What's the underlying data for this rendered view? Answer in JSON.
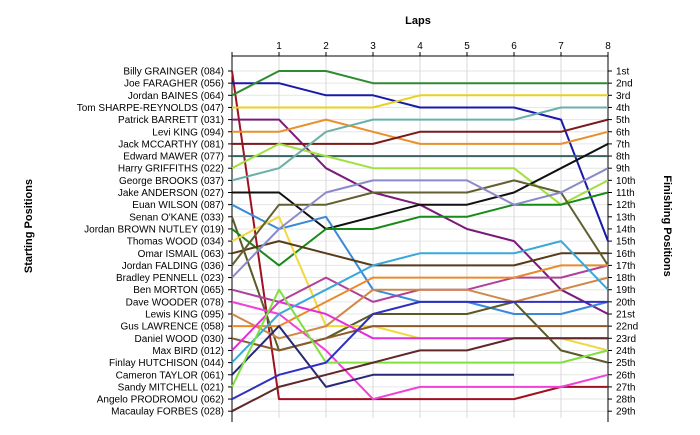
{
  "chart_data": {
    "type": "line",
    "title": "Laps",
    "ylabel_left": "Starting Positions",
    "ylabel_right": "Finishing Positions",
    "x": [
      0,
      1,
      2,
      3,
      4,
      5,
      6,
      7,
      8
    ],
    "x_tick_labels": [
      "1",
      "2",
      "3",
      "4",
      "5",
      "6",
      "7",
      "8"
    ],
    "y_reversed": true,
    "y_range": [
      1,
      29
    ],
    "grid": true,
    "legend": "none",
    "starting_labels": [
      "Billy GRAINGER (084)",
      "Joe FARAGHER (056)",
      "Jordan BAINES (064)",
      "Tom SHARPE-REYNOLDS (047)",
      "Patrick BARRETT (031)",
      "Levi KING (094)",
      "Jack MCCARTHY (081)",
      "Edward MAWER (077)",
      "Harry GRIFFITHS (022)",
      "George BROOKS (037)",
      "Jake ANDERSON (027)",
      "Euan WILSON (087)",
      "Senan O'KANE (033)",
      "Jordan BROWN NUTLEY (019)",
      "Thomas WOOD (034)",
      "Omar ISMAIL (063)",
      "Jordan FALDING (036)",
      "Bradley PENNELL (023)",
      "Ben MORTON (065)",
      "Dave WOODER (078)",
      "Lewis KING (095)",
      "Gus LAWRENCE (058)",
      "Daniel WOOD (030)",
      "Max BIRD (012)",
      "Finlay HUTCHISON (044)",
      "Cameron TAYLOR (061)",
      "Sandy MITCHELL (021)",
      "Angelo PRODROMOU (062)",
      "Macaulay FORBES (028)"
    ],
    "finishing_labels": [
      "1st",
      "2nd",
      "3rd",
      "4th",
      "5th",
      "6th",
      "7th",
      "8th",
      "9th",
      "10th",
      "11th",
      "12th",
      "13th",
      "14th",
      "15th",
      "16th",
      "17th",
      "18th",
      "19th",
      "20th",
      "21st",
      "22nd",
      "23rd",
      "24th",
      "25th",
      "26th",
      "27th",
      "28th",
      "29th"
    ],
    "series": [
      {
        "color": "#a01020",
        "values": [
          1,
          28,
          28,
          28,
          28,
          28,
          28,
          27,
          27
        ]
      },
      {
        "color": "#1a1aa8",
        "values": [
          2,
          2,
          3,
          3,
          4,
          4,
          4,
          5,
          15
        ]
      },
      {
        "color": "#2e8b30",
        "values": [
          3,
          1,
          1,
          2,
          2,
          2,
          2,
          2,
          2
        ]
      },
      {
        "color": "#e8d21a",
        "values": [
          4,
          4,
          4,
          4,
          3,
          3,
          3,
          3,
          3
        ]
      },
      {
        "color": "#7a1a7a",
        "values": [
          5,
          5,
          9,
          11,
          12,
          14,
          15,
          19,
          21
        ]
      },
      {
        "color": "#e8902a",
        "values": [
          6,
          6,
          5,
          6,
          7,
          7,
          7,
          7,
          6
        ]
      },
      {
        "color": "#7a1a1a",
        "values": [
          7,
          7,
          7,
          7,
          6,
          6,
          6,
          6,
          5
        ]
      },
      {
        "color": "#3a6060",
        "values": [
          8,
          8,
          8,
          8,
          8,
          8,
          8,
          8,
          8
        ]
      },
      {
        "color": "#a0e040",
        "values": [
          9,
          7,
          8,
          9,
          9,
          9,
          9,
          12,
          10
        ]
      },
      {
        "color": "#6ab0a8",
        "values": [
          10,
          9,
          6,
          5,
          5,
          5,
          5,
          4,
          4
        ]
      },
      {
        "color": "#101010",
        "values": [
          11,
          11,
          14,
          13,
          12,
          12,
          11,
          9,
          7
        ]
      },
      {
        "color": "#3a8ad8",
        "values": [
          12,
          14,
          13,
          19,
          20,
          20,
          21,
          21,
          20
        ]
      },
      {
        "color": "#5a5a28",
        "values": [
          13,
          24,
          23,
          21,
          21,
          21,
          20,
          24,
          25
        ]
      },
      {
        "color": "#188a18",
        "values": [
          14,
          17,
          14,
          14,
          13,
          13,
          12,
          12,
          11
        ]
      },
      {
        "color": "#f0d840",
        "values": [
          15,
          13,
          22,
          22,
          23,
          23,
          23,
          23,
          24
        ]
      },
      {
        "color": "#5a3a18",
        "values": [
          16,
          15,
          16,
          17,
          17,
          17,
          17,
          16,
          16
        ]
      },
      {
        "color": "#606030",
        "values": [
          17,
          12,
          12,
          11,
          11,
          11,
          10,
          11,
          17
        ]
      },
      {
        "color": "#8a8aca",
        "values": [
          18,
          14,
          11,
          10,
          10,
          10,
          12,
          11,
          9
        ]
      },
      {
        "color": "#b0409a",
        "values": [
          19,
          20,
          18,
          20,
          19,
          19,
          18,
          18,
          17
        ]
      },
      {
        "color": "#f040d8",
        "values": [
          20,
          21,
          24,
          28,
          27,
          27,
          27,
          27,
          26
        ]
      },
      {
        "color": "#d08848",
        "values": [
          21,
          23,
          22,
          19,
          19,
          19,
          20,
          19,
          18
        ]
      },
      {
        "color": "#ea8a2a",
        "values": [
          22,
          22,
          20,
          18,
          18,
          18,
          18,
          17,
          17
        ]
      },
      {
        "color": "#8a5a28",
        "values": [
          23,
          24,
          23,
          22,
          22,
          22,
          22,
          22,
          22
        ]
      },
      {
        "color": "#e030d8",
        "values": [
          24,
          20,
          21,
          23,
          23,
          23,
          23,
          23,
          23
        ]
      },
      {
        "color": "#38a8d8",
        "values": [
          25,
          21,
          19,
          17,
          16,
          16,
          16,
          15,
          19
        ]
      },
      {
        "color": "#282878",
        "values": [
          26,
          22,
          27,
          26,
          26,
          26,
          26,
          null,
          null
        ]
      },
      {
        "color": "#80e040",
        "values": [
          27,
          19,
          25,
          25,
          25,
          25,
          25,
          25,
          24
        ]
      },
      {
        "color": "#3030c0",
        "values": [
          28,
          26,
          25,
          21,
          20,
          20,
          20,
          20,
          20
        ]
      },
      {
        "color": "#602828",
        "values": [
          29,
          27,
          26,
          25,
          24,
          24,
          23,
          23,
          23
        ]
      }
    ]
  }
}
